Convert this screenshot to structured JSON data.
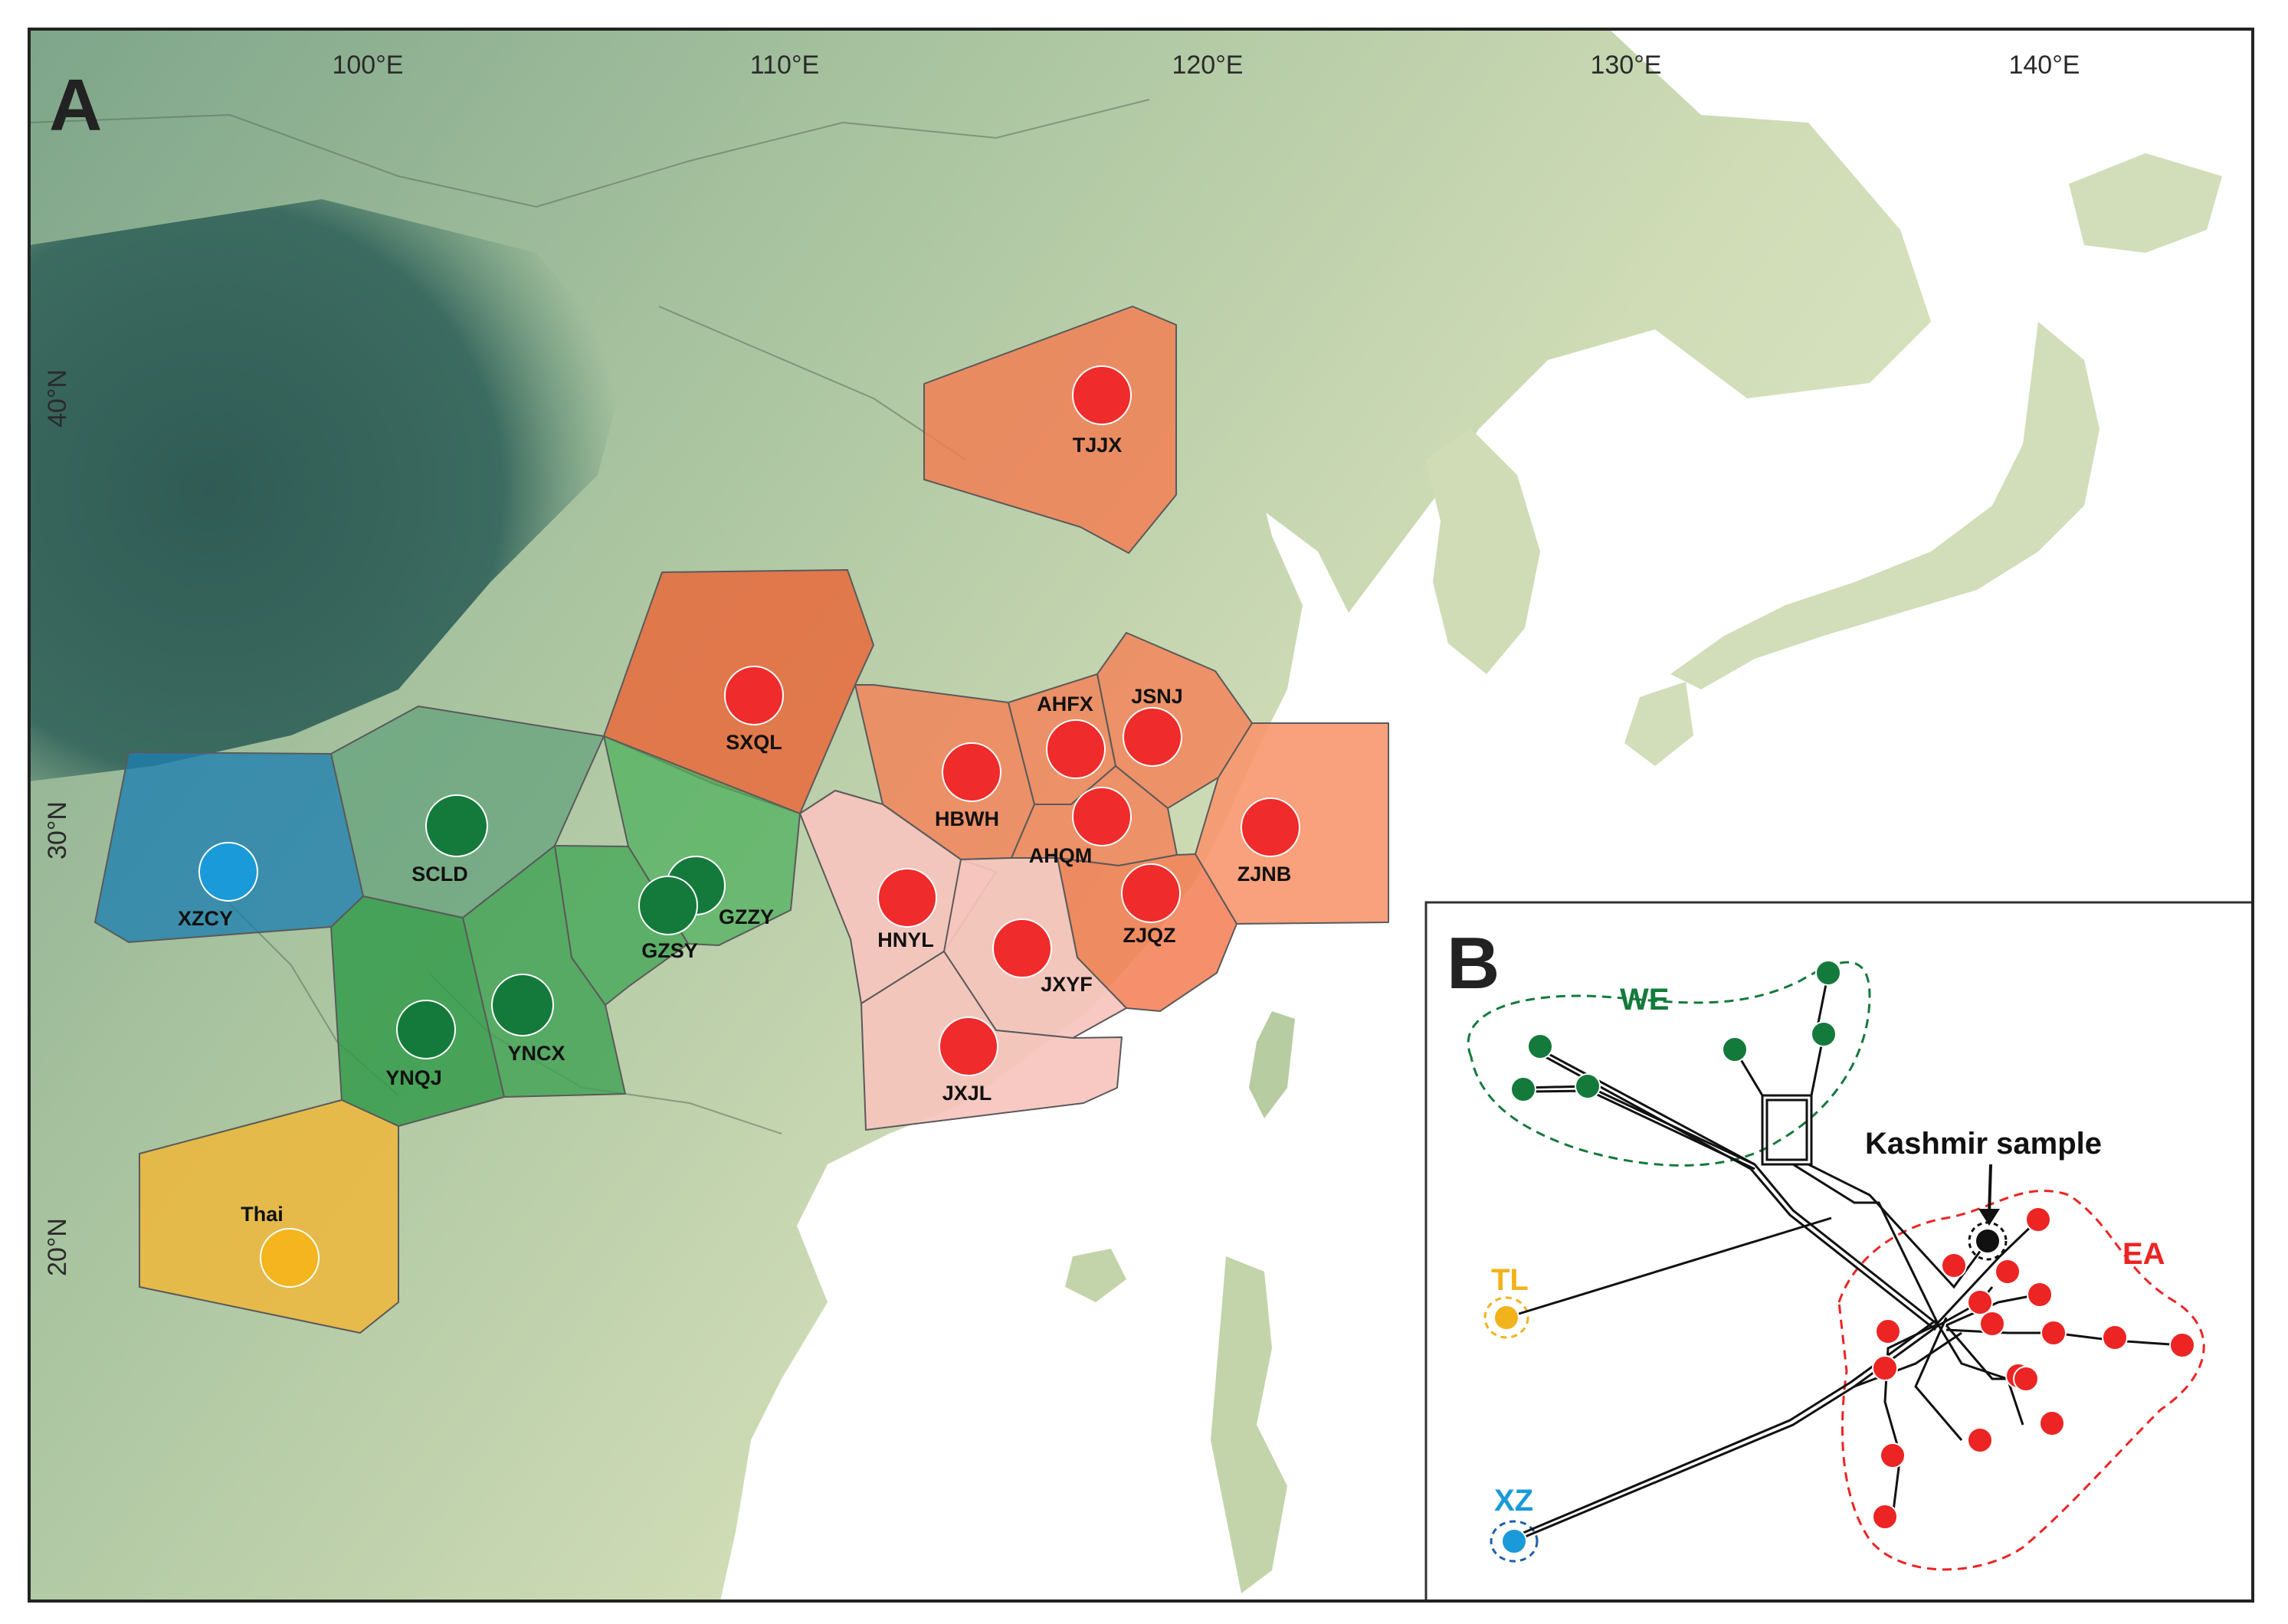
{
  "panel_a": {
    "letter": "A",
    "lon_labels": [
      "100°E",
      "110°E",
      "120°E",
      "130°E",
      "140°E"
    ],
    "lat_labels": [
      "40°N",
      "30°N",
      "20°N"
    ]
  },
  "panel_b": {
    "letter": "B",
    "groups": [
      {
        "key": "WE",
        "label": "WE",
        "color": "#147a3c"
      },
      {
        "key": "TL",
        "label": "TL",
        "color": "#f2b21c"
      },
      {
        "key": "XZ",
        "label": "XZ",
        "color": "#1a9ad9"
      },
      {
        "key": "EA",
        "label": "EA",
        "color": "#ec2424"
      }
    ],
    "callout": "Kashmir sample"
  },
  "colors": {
    "east_asia_dot": "#ef2b2b",
    "southwest_dot": "#147a3c",
    "tibet_dot": "#1a9ad9",
    "thai_dot": "#f4b51e",
    "kashmir_dot": "#111111",
    "sea": "#ffffff",
    "land": "#c9d7b2"
  },
  "sites": [
    {
      "code": "TJJX",
      "label": "TJJX",
      "group": "EA"
    },
    {
      "code": "SXQL",
      "label": "SXQL",
      "group": "EA"
    },
    {
      "code": "HBWH",
      "label": "HBWH",
      "group": "EA"
    },
    {
      "code": "AHFX",
      "label": "AHFX",
      "group": "EA"
    },
    {
      "code": "JSNJ",
      "label": "JSNJ",
      "group": "EA"
    },
    {
      "code": "AHQM",
      "label": "AHQM",
      "group": "EA"
    },
    {
      "code": "ZJNB",
      "label": "ZJNB",
      "group": "EA"
    },
    {
      "code": "HNYL",
      "label": "HNYL",
      "group": "EA"
    },
    {
      "code": "JXYF",
      "label": "JXYF",
      "group": "EA"
    },
    {
      "code": "ZJQZ",
      "label": "ZJQZ",
      "group": "EA"
    },
    {
      "code": "JXJL",
      "label": "JXJL",
      "group": "EA"
    },
    {
      "code": "SCLD",
      "label": "SCLD",
      "group": "WE"
    },
    {
      "code": "GZZY",
      "label": "GZZY",
      "group": "WE"
    },
    {
      "code": "GZSY",
      "label": "GZSY",
      "group": "WE"
    },
    {
      "code": "YNCX",
      "label": "YNCX",
      "group": "WE"
    },
    {
      "code": "YNQJ",
      "label": "YNQJ",
      "group": "WE"
    },
    {
      "code": "XZCY",
      "label": "XZCY",
      "group": "XZ"
    },
    {
      "code": "Thai",
      "label": "Thai",
      "group": "TL"
    }
  ]
}
